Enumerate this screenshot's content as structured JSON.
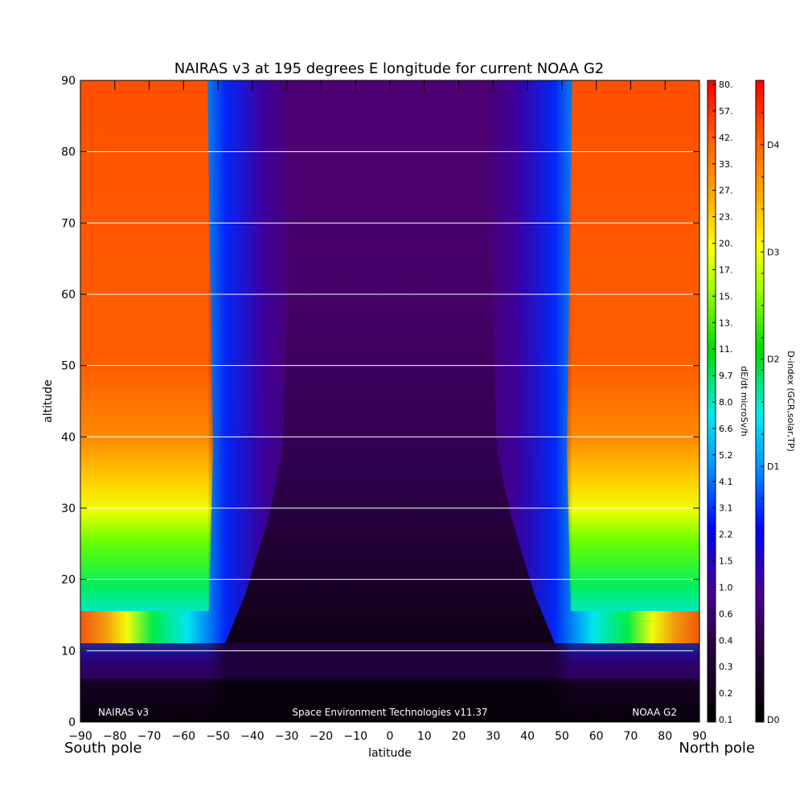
{
  "chart_data": {
    "type": "heatmap",
    "title": "NAIRAS v3 at 195 degrees E longitude for current NOAA G2",
    "xlabel": "latitude",
    "ylabel": "altitude",
    "xlim": [
      -90,
      90
    ],
    "ylim": [
      0,
      90
    ],
    "x_ticks": [
      "-90",
      "-80",
      "-70",
      "-60",
      "-50",
      "-40",
      "-30",
      "-20",
      "-10",
      "0",
      "10",
      "20",
      "30",
      "40",
      "50",
      "60",
      "70",
      "80",
      "90"
    ],
    "y_ticks": [
      "0",
      "10",
      "20",
      "30",
      "40",
      "50",
      "60",
      "70",
      "80",
      "90"
    ],
    "grid": "horizontal lines at each y tick",
    "x_end_labels": {
      "left": "South pole",
      "right": "North pole"
    },
    "annotations": {
      "left": "NAIRAS v3",
      "center": "Space Environment Technologies v11.37",
      "right": "NOAA G2"
    },
    "colorbar_dose": {
      "label": "dE/dt microSv/h",
      "ticks": [
        "80.",
        "57.",
        "42.",
        "33.",
        "27.",
        "23.",
        "20.",
        "17.",
        "15.",
        "13.",
        "11.",
        "9.7",
        "8.0",
        "6.6",
        "5.2",
        "4.1",
        "3.1",
        "2.2",
        "1.5",
        "1.0",
        "0.6",
        "0.4",
        "0.3",
        "0.2",
        "0.1"
      ]
    },
    "colorbar_dindex": {
      "label": "D-index (GCR,solar,TP)",
      "ticks": [
        "D4",
        "D3",
        "D2",
        "D1",
        "D0"
      ]
    },
    "colors": {
      "high": "#ff5200",
      "orange": "#ff9f00",
      "yellow": "#ffff00",
      "green": "#00dd00",
      "cyan": "#00dddd",
      "blue": "#0022ff",
      "purple": "#440077",
      "dark": "#000000"
    }
  }
}
